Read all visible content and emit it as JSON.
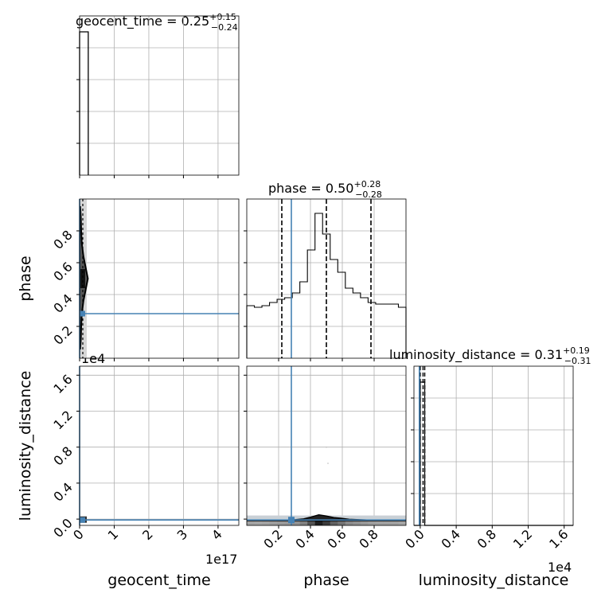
{
  "chart_data": {
    "type": "corner",
    "truth_color": "#4682b4",
    "hist_color": "#000000",
    "parameters": [
      {
        "name": "geocent_time",
        "title": {
          "label": "geocent_time = ",
          "value": "0.25",
          "plus": "+0.15",
          "minus": "−0.24"
        },
        "range": [
          0,
          4.6
        ],
        "ticks": [
          0,
          1,
          2,
          3,
          4
        ],
        "tick_labels": [
          "0",
          "1",
          "2",
          "3",
          "4"
        ],
        "offset_label": "1e17",
        "truth": 0
      },
      {
        "name": "phase",
        "title": {
          "label": "phase = ",
          "value": "0.50",
          "plus": "+0.28",
          "minus": "−0.28"
        },
        "range": [
          0,
          1
        ],
        "ticks": [
          0.2,
          0.4,
          0.6,
          0.8
        ],
        "tick_labels": [
          "0.2",
          "0.4",
          "0.6",
          "0.8"
        ],
        "offset_label": "",
        "truth": 0.28,
        "quantiles": [
          0.22,
          0.5,
          0.78
        ],
        "hist": [
          0.33,
          0.32,
          0.33,
          0.35,
          0.37,
          0.38,
          0.41,
          0.48,
          0.68,
          0.91,
          0.78,
          0.62,
          0.54,
          0.44,
          0.41,
          0.38,
          0.35,
          0.34,
          0.34,
          0.34,
          0.32
        ]
      },
      {
        "name": "luminosity_distance",
        "title": {
          "label": "luminosity_distance = ",
          "value": "0.31",
          "plus": "+0.19",
          "minus": "−0.31"
        },
        "range": [
          -0.07,
          1.7
        ],
        "ticks": [
          0,
          0.4,
          0.8,
          1.2,
          1.6
        ],
        "tick_labels": [
          "0.0",
          "0.4",
          "0.8",
          "1.2",
          "1.6"
        ],
        "offset_label": "1e4",
        "truth": -0.01,
        "quantiles": [
          0.0,
          0.031,
          0.05
        ]
      }
    ],
    "geocent_hist": {
      "bin_range": [
        0,
        0.25
      ],
      "height": 1
    },
    "luminosity_hist": {
      "bin_range": [
        0.0,
        0.05
      ],
      "height": 1
    },
    "phase_1d_yrange": [
      0,
      1
    ],
    "joint_phase_geocent_profile": [
      {
        "phase": 0.06,
        "width": 0.02
      },
      {
        "phase": 0.12,
        "width": 0.04
      },
      {
        "phase": 0.2,
        "width": 0.05
      },
      {
        "phase": 0.28,
        "width": 0.07
      },
      {
        "phase": 0.36,
        "width": 0.12
      },
      {
        "phase": 0.44,
        "width": 0.2
      },
      {
        "phase": 0.5,
        "width": 0.26
      },
      {
        "phase": 0.56,
        "width": 0.2
      },
      {
        "phase": 0.64,
        "width": 0.12
      },
      {
        "phase": 0.72,
        "width": 0.07
      },
      {
        "phase": 0.8,
        "width": 0.05
      },
      {
        "phase": 0.88,
        "width": 0.04
      },
      {
        "phase": 0.95,
        "width": 0.02
      }
    ]
  }
}
